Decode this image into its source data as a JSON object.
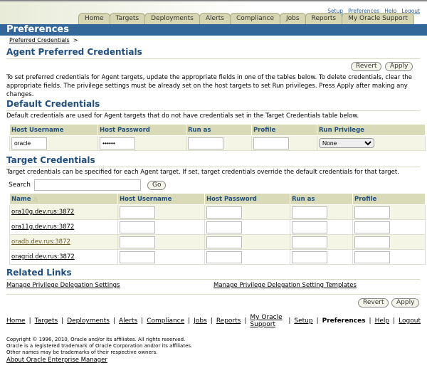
{
  "top_links": [
    "Setup",
    "Preferences",
    "Help",
    "Logout"
  ],
  "tabs": [
    "Home",
    "Targets",
    "Deployments",
    "Alerts",
    "Compliance",
    "Jobs",
    "Reports",
    "My Oracle Support"
  ],
  "page_bar_title": "Preferences",
  "breadcrumb": {
    "item": "Preferred Credentials",
    "sep": ">"
  },
  "page_title": "Agent Preferred Credentials",
  "buttons": {
    "revert": "Revert",
    "apply": "Apply",
    "go": "Go"
  },
  "intro": "To set preferred credentials for Agent targets, update the appropriate fields in one of the tables below. To delete credentials, clear the appropriate fields. The privilege settings must be already set on the host targets to set Run privileges. Press Apply after making any changes.",
  "default_credentials": {
    "heading": "Default Credentials",
    "description": "Default credentials are used for Agent targets that do not have credentials set in the Target Credentials table below.",
    "columns": [
      "Host Username",
      "Host Password",
      "Run as",
      "Profile",
      "Run Privilege"
    ],
    "row": {
      "host_username": "oracle",
      "host_password": "••••••",
      "run_as": "",
      "profile": "",
      "run_privilege": "None"
    }
  },
  "target_credentials": {
    "heading": "Target Credentials",
    "description": "Target credentials can be specified for each Agent target. If set, target credentials override the default credentials for that target.",
    "search_label": "Search",
    "search_value": "",
    "columns": [
      "Name",
      "Host Username",
      "Host Password",
      "Run as",
      "Profile"
    ],
    "sort_icon": "triangle-up",
    "rows": [
      {
        "name": "ora10g.dev.rus:3872"
      },
      {
        "name": "ora11g.dev.rus:3872"
      },
      {
        "name": "oradb.dev.rus:3872"
      },
      {
        "name": "oragrid.dev.rus:3872"
      }
    ]
  },
  "related_links": {
    "heading": "Related Links",
    "links": [
      "Manage Privilege Delegation Settings",
      "Manage Privilege Delegation Setting Templates"
    ]
  },
  "footer": {
    "links": [
      "Home",
      "Targets",
      "Deployments",
      "Alerts",
      "Compliance",
      "Jobs",
      "Reports",
      "My Oracle Support"
    ],
    "right_links": [
      "Setup",
      "Preferences",
      "Help",
      "Logout"
    ],
    "sep": "|"
  },
  "copyright": [
    "Copyright © 1996, 2010, Oracle and/or its affiliates. All rights reserved.",
    "Oracle is a registered trademark of Oracle Corporation and/or its affiliates.",
    "Other names may be trademarks of their respective owners."
  ],
  "about_link": "About Oracle Enterprise Manager"
}
